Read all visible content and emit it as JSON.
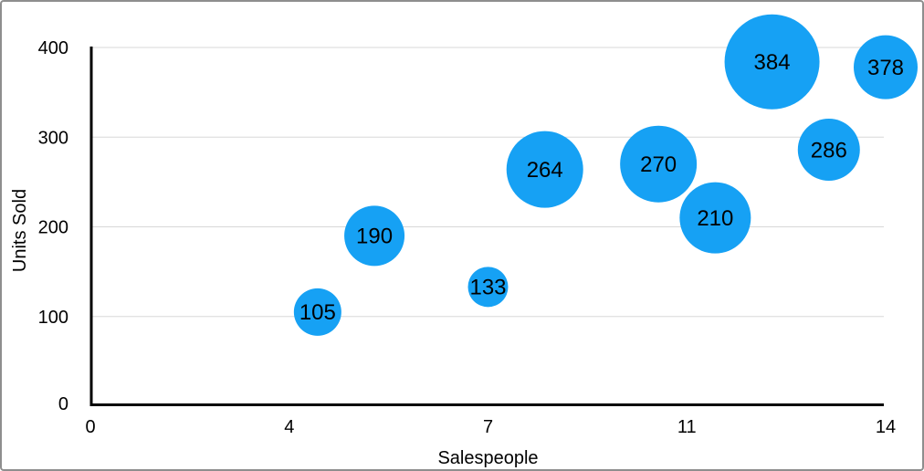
{
  "figure": {
    "background": "#ffffff",
    "border_color": "#8e8e8e"
  },
  "chart_data": {
    "type": "scatter",
    "variant": "bubble",
    "title": "",
    "xlabel": "Salespeople",
    "ylabel": "Units Sold",
    "xlim": [
      0,
      14
    ],
    "ylim": [
      0,
      400
    ],
    "grid": "horizontal",
    "legend": "none",
    "x_ticks": [
      {
        "value": 0,
        "label": "0"
      },
      {
        "value": 3.5,
        "label": "4"
      },
      {
        "value": 7,
        "label": "7"
      },
      {
        "value": 10.5,
        "label": "11"
      },
      {
        "value": 14,
        "label": "14"
      }
    ],
    "y_ticks": [
      {
        "value": 0,
        "label": "0"
      },
      {
        "value": 100,
        "label": "100"
      },
      {
        "value": 200,
        "label": "200"
      },
      {
        "value": 300,
        "label": "300"
      },
      {
        "value": 400,
        "label": "400"
      }
    ],
    "points": [
      {
        "x": 4,
        "y": 105,
        "label": "105",
        "radius_px": 26
      },
      {
        "x": 5,
        "y": 190,
        "label": "190",
        "radius_px": 33
      },
      {
        "x": 7,
        "y": 133,
        "label": "133",
        "radius_px": 22
      },
      {
        "x": 8,
        "y": 264,
        "label": "264",
        "radius_px": 42
      },
      {
        "x": 10,
        "y": 270,
        "label": "270",
        "radius_px": 42
      },
      {
        "x": 11,
        "y": 210,
        "label": "210",
        "radius_px": 39
      },
      {
        "x": 12,
        "y": 384,
        "label": "384",
        "radius_px": 52
      },
      {
        "x": 13,
        "y": 286,
        "label": "286",
        "radius_px": 34
      },
      {
        "x": 14,
        "y": 378,
        "label": "378",
        "radius_px": 35
      }
    ],
    "colors": {
      "bubble_fill": "#16A1F4",
      "bubble_label": "#000000",
      "axis_line": "#000000",
      "gridline": "#d8d8d8",
      "tick_label": "#000000"
    }
  }
}
